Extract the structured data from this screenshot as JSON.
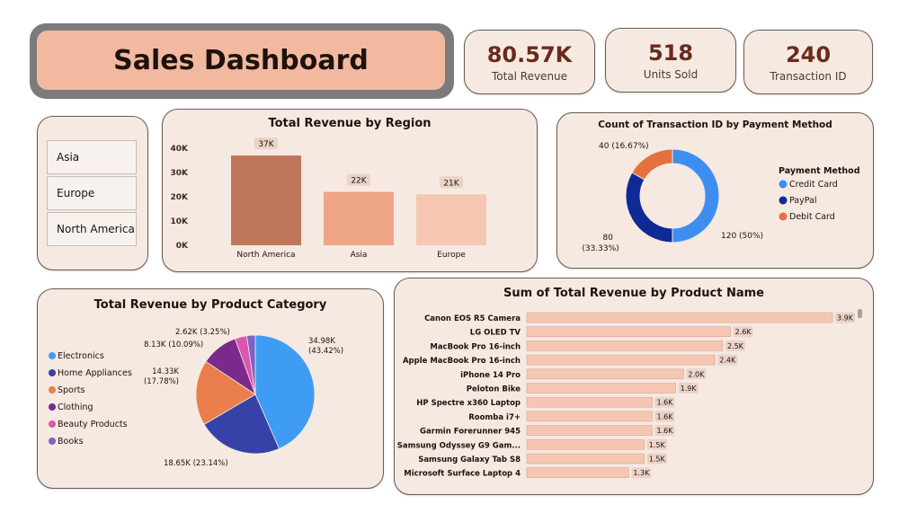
{
  "header": {
    "title": "Sales Dashboard"
  },
  "kpis": [
    {
      "value": "80.57K",
      "label": "Total Revenue"
    },
    {
      "value": "518",
      "label": "Units Sold"
    },
    {
      "value": "240",
      "label": "Transaction ID"
    }
  ],
  "region_slicer": {
    "items": [
      "Asia",
      "Europe",
      "North America"
    ]
  },
  "chart_data": [
    {
      "type": "bar",
      "title": "Total Revenue by Region",
      "categories": [
        "North America",
        "Asia",
        "Europe"
      ],
      "values": [
        37000,
        22000,
        21000
      ],
      "data_labels": [
        "37K",
        "22K",
        "21K"
      ],
      "y_ticks": [
        "0K",
        "10K",
        "20K",
        "30K",
        "40K"
      ],
      "ylim": [
        0,
        40000
      ],
      "colors": [
        "#c0765a",
        "#eea686",
        "#f5c7b2"
      ],
      "grid": false
    },
    {
      "type": "pie",
      "variant": "donut",
      "title": "Count of Transaction ID by Payment Method",
      "legend_title": "Payment Method",
      "legend_position": "right",
      "slices": [
        {
          "name": "Credit Card",
          "value": 120,
          "label": "120 (50%)",
          "color": "#3d8ef0"
        },
        {
          "name": "PayPal",
          "value": 80,
          "label": "80 (33.33%)",
          "color": "#0f2a94"
        },
        {
          "name": "Debit Card",
          "value": 40,
          "label": "40 (16.67%)",
          "color": "#e3703f"
        }
      ]
    },
    {
      "type": "pie",
      "title": "Total Revenue by Product Category",
      "legend_position": "left",
      "slices": [
        {
          "name": "Electronics",
          "value": 34980,
          "label": "34.98K (43.42%)",
          "color": "#3f9cf3"
        },
        {
          "name": "Home Appliances",
          "value": 18650,
          "label": "18.65K (23.14%)",
          "color": "#3742a8"
        },
        {
          "name": "Sports",
          "value": 14330,
          "label": "14.33K (17.78%)",
          "color": "#ea7e4c"
        },
        {
          "name": "Clothing",
          "value": 8130,
          "label": "8.13K (10.09%)",
          "color": "#7b2a8c"
        },
        {
          "name": "Beauty Products",
          "value": 2620,
          "label": "2.62K (3.25%)",
          "color": "#dc55ae"
        },
        {
          "name": "Books",
          "value": 1860,
          "label": "",
          "color": "#7a62c8"
        }
      ]
    },
    {
      "type": "bar",
      "orientation": "horizontal",
      "title": "Sum of Total Revenue by Product Name",
      "categories": [
        "Canon EOS R5 Camera",
        "LG OLED TV",
        "MacBook Pro 16-inch",
        "Apple MacBook Pro 16-inch",
        "iPhone 14 Pro",
        "Peloton Bike",
        "HP Spectre x360 Laptop",
        "Roomba i7+",
        "Garmin Forerunner 945",
        "Samsung Odyssey G9 Gam...",
        "Samsung Galaxy Tab S8",
        "Microsoft Surface Laptop 4"
      ],
      "values": [
        3900,
        2600,
        2500,
        2400,
        2000,
        1900,
        1600,
        1600,
        1600,
        1500,
        1500,
        1300
      ],
      "data_labels": [
        "3.9K",
        "2.6K",
        "2.5K",
        "2.4K",
        "2.0K",
        "1.9K",
        "1.6K",
        "1.6K",
        "1.6K",
        "1.5K",
        "1.5K",
        "1.3K"
      ],
      "xlim": [
        0,
        3900
      ],
      "color": "#f5c7b2"
    }
  ]
}
